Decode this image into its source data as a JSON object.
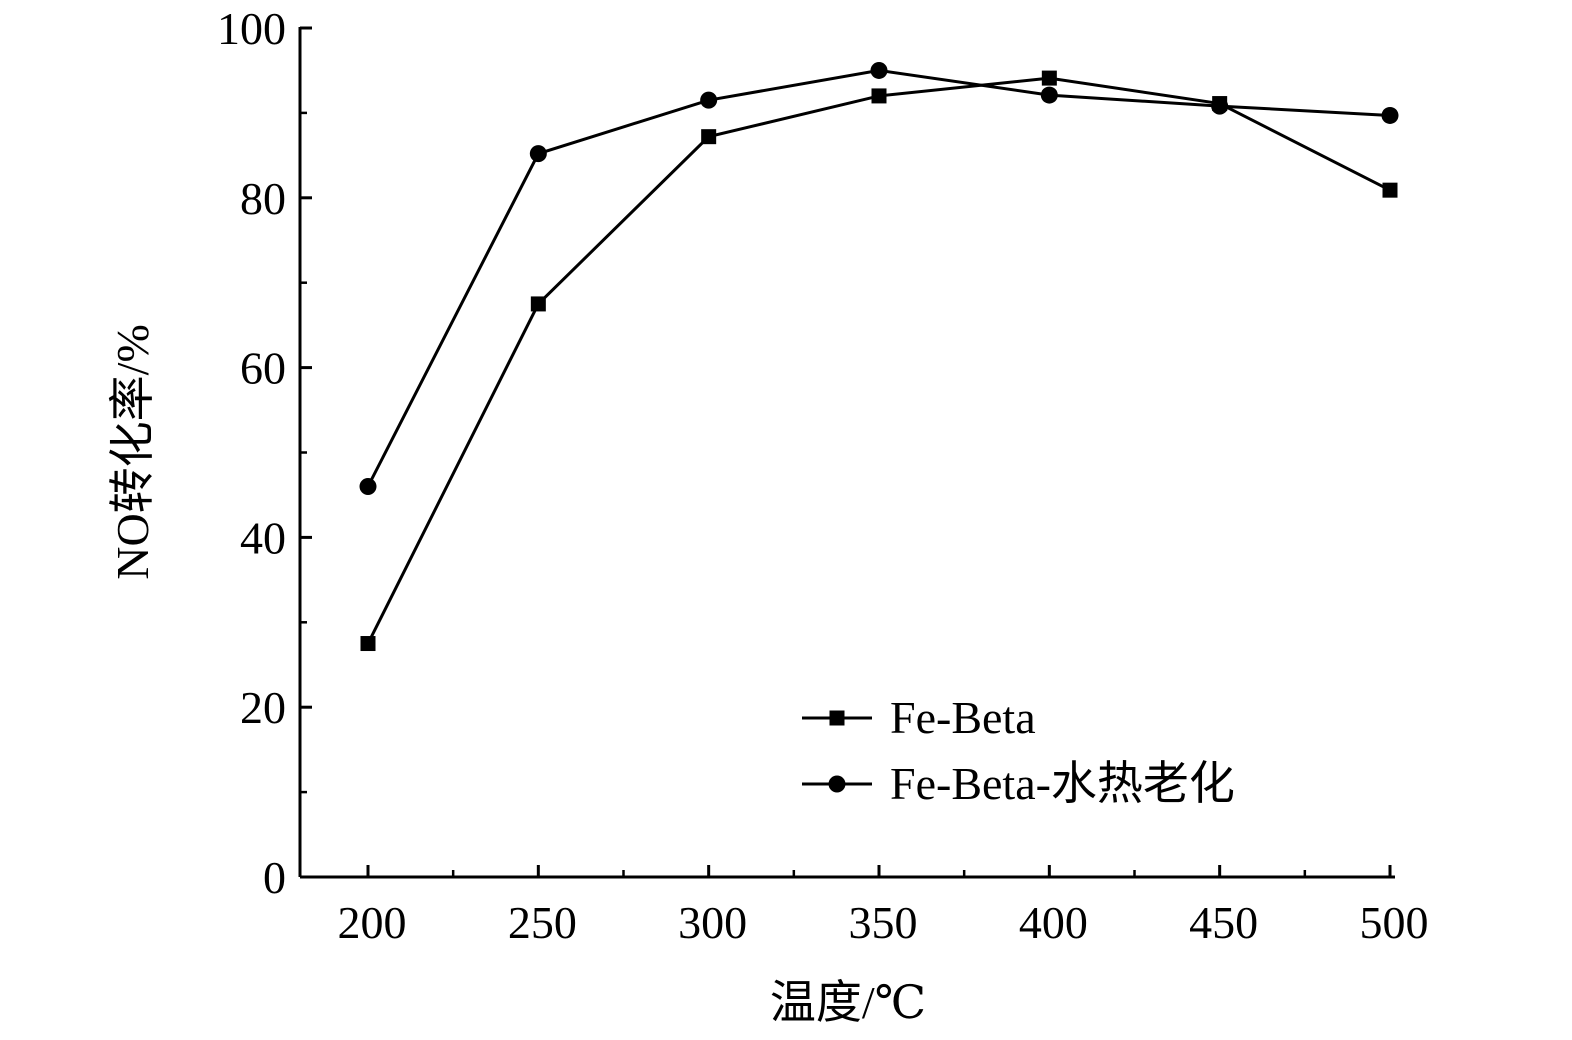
{
  "chart_data": {
    "type": "line",
    "xlabel": "温度/℃",
    "ylabel": "NO转化率/%",
    "xlim": [
      180,
      500
    ],
    "ylim": [
      0,
      100
    ],
    "x_ticks": [
      "200",
      "250",
      "300",
      "350",
      "400",
      "450",
      "500"
    ],
    "y_ticks": [
      "0",
      "20",
      "40",
      "60",
      "80",
      "100"
    ],
    "x": [
      200,
      250,
      300,
      350,
      400,
      450,
      500
    ],
    "series": [
      {
        "name": "Fe-Beta",
        "marker": "square",
        "color": "#000000",
        "values": [
          27.5,
          67.5,
          87.2,
          92.0,
          94.1,
          91.1,
          80.9
        ]
      },
      {
        "name": "Fe-Beta-水热老化",
        "marker": "circle",
        "color": "#000000",
        "values": [
          46.0,
          85.2,
          91.5,
          95.0,
          92.1,
          90.8,
          89.7
        ]
      }
    ],
    "grid": false,
    "legend_position": "bottom-right"
  }
}
